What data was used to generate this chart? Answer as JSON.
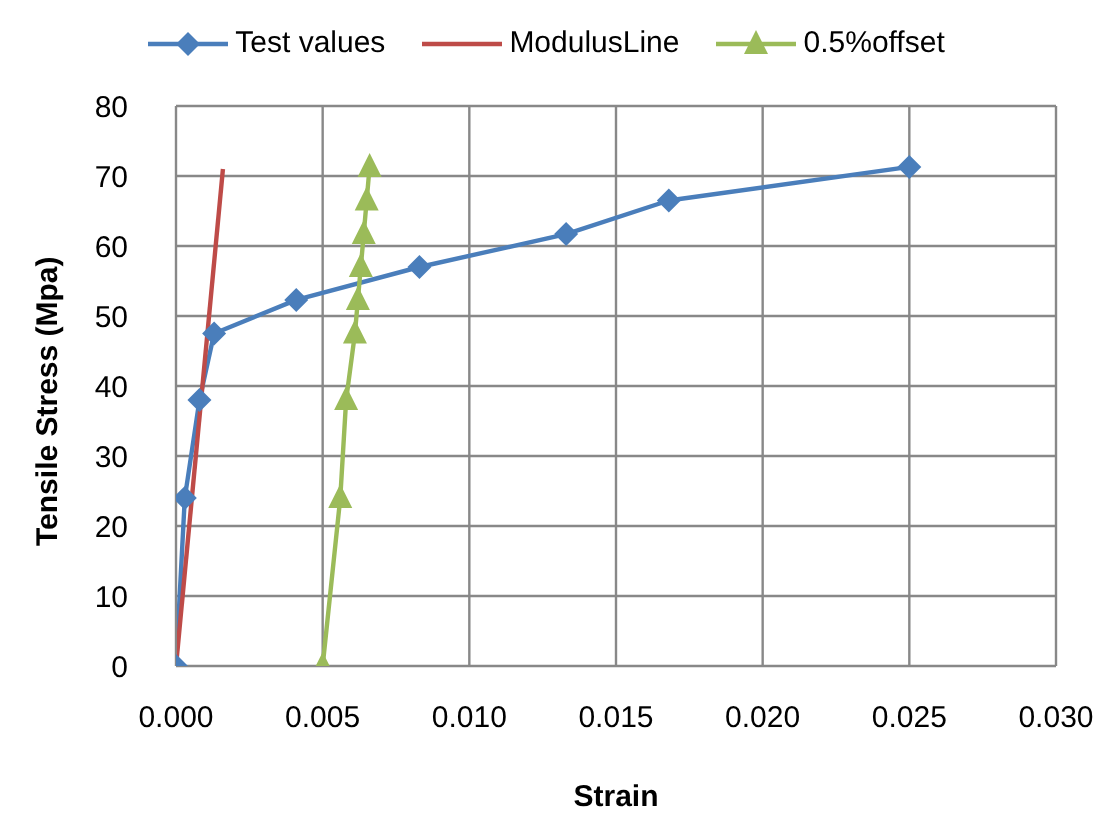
{
  "chart_data": {
    "type": "line",
    "xlabel": "Strain",
    "ylabel": "Tensile Stress (Mpa)",
    "xlim": [
      0,
      0.03
    ],
    "ylim": [
      0,
      80
    ],
    "xticks": [
      {
        "value": 0,
        "label": "0.000"
      },
      {
        "value": 0.005,
        "label": "0.005"
      },
      {
        "value": 0.01,
        "label": "0.010"
      },
      {
        "value": 0.015,
        "label": "0.015"
      },
      {
        "value": 0.02,
        "label": "0.020"
      },
      {
        "value": 0.025,
        "label": "0.025"
      },
      {
        "value": 0.03,
        "label": "0.030"
      }
    ],
    "yticks": [
      0,
      10,
      20,
      30,
      40,
      50,
      60,
      70,
      80
    ],
    "grid": true,
    "legend": "top",
    "line_style": "solid",
    "series": [
      {
        "name": "Test values",
        "color": "#4a7ebb",
        "marker": "diamond",
        "x": [
          0,
          0.0003,
          0.0008,
          0.0013,
          0.0041,
          0.0083,
          0.0133,
          0.0168,
          0.025
        ],
        "values": [
          0,
          24,
          38,
          47.5,
          52.3,
          57,
          61.7,
          66.5,
          71.3
        ]
      },
      {
        "name": "ModulusLine",
        "color": "#be4b48",
        "marker": "none",
        "x": [
          0,
          0.0016
        ],
        "values": [
          0,
          71
        ]
      },
      {
        "name": "0.5%offset",
        "color": "#9bbb59",
        "marker": "triangle",
        "x": [
          0.005,
          0.0056,
          0.0058,
          0.0061,
          0.0062,
          0.0063,
          0.0064,
          0.0065,
          0.0066
        ],
        "values": [
          0,
          24,
          38,
          47.5,
          52.3,
          57,
          61.7,
          66.5,
          71.3
        ]
      }
    ]
  }
}
